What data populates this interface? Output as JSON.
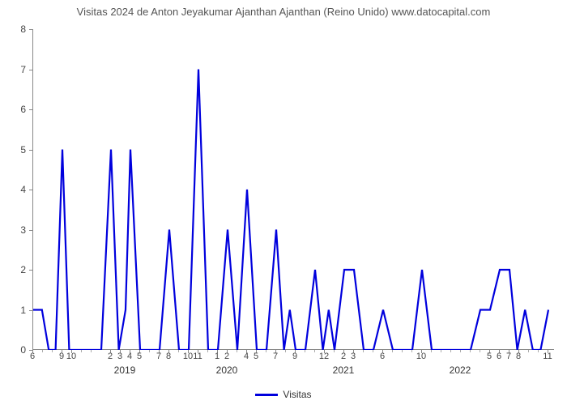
{
  "chart": {
    "type": "line",
    "title": "Visitas 2024 de Anton Jeyakumar Ajanthan Ajanthan (Reino Unido) www.datocapital.com",
    "title_color": "#555555",
    "title_fontsize": 13,
    "background_color": "#ffffff",
    "axis_color": "#888888",
    "tick_label_color": "#444444",
    "tick_fontsize": 12,
    "xtick_fontsize": 11,
    "line_color": "#0000dd",
    "line_width": 2.2,
    "ylim": [
      0,
      8
    ],
    "xlim": [
      0,
      64
    ],
    "ytick_step": 1,
    "x_month_ticks": [
      {
        "pos": 0,
        "label": "6"
      },
      {
        "pos": 1,
        "label": ""
      },
      {
        "pos": 2,
        "label": ""
      },
      {
        "pos": 3,
        "label": "9"
      },
      {
        "pos": 4,
        "label": "10"
      },
      {
        "pos": 5,
        "label": ""
      },
      {
        "pos": 6,
        "label": ""
      },
      {
        "pos": 8,
        "label": "2"
      },
      {
        "pos": 9,
        "label": "3"
      },
      {
        "pos": 10,
        "label": "4"
      },
      {
        "pos": 11,
        "label": "5"
      },
      {
        "pos": 12,
        "label": ""
      },
      {
        "pos": 13,
        "label": "7"
      },
      {
        "pos": 14,
        "label": "8"
      },
      {
        "pos": 15,
        "label": ""
      },
      {
        "pos": 16,
        "label": "10"
      },
      {
        "pos": 17,
        "label": "11"
      },
      {
        "pos": 18,
        "label": ""
      },
      {
        "pos": 19,
        "label": "1"
      },
      {
        "pos": 20,
        "label": "2"
      },
      {
        "pos": 21,
        "label": ""
      },
      {
        "pos": 22,
        "label": "4"
      },
      {
        "pos": 23,
        "label": "5"
      },
      {
        "pos": 24,
        "label": ""
      },
      {
        "pos": 25,
        "label": "7"
      },
      {
        "pos": 26,
        "label": ""
      },
      {
        "pos": 27,
        "label": "9"
      },
      {
        "pos": 28,
        "label": ""
      },
      {
        "pos": 29,
        "label": ""
      },
      {
        "pos": 30,
        "label": "12"
      },
      {
        "pos": 31,
        "label": ""
      },
      {
        "pos": 32,
        "label": "2"
      },
      {
        "pos": 33,
        "label": "3"
      },
      {
        "pos": 34,
        "label": ""
      },
      {
        "pos": 35,
        "label": ""
      },
      {
        "pos": 36,
        "label": "6"
      },
      {
        "pos": 37,
        "label": ""
      },
      {
        "pos": 38,
        "label": ""
      },
      {
        "pos": 39,
        "label": ""
      },
      {
        "pos": 40,
        "label": "10"
      },
      {
        "pos": 41,
        "label": ""
      },
      {
        "pos": 42,
        "label": ""
      },
      {
        "pos": 43,
        "label": ""
      },
      {
        "pos": 44,
        "label": ""
      },
      {
        "pos": 45,
        "label": ""
      },
      {
        "pos": 46,
        "label": ""
      },
      {
        "pos": 47,
        "label": "5"
      },
      {
        "pos": 48,
        "label": "6"
      },
      {
        "pos": 49,
        "label": "7"
      },
      {
        "pos": 50,
        "label": "8"
      },
      {
        "pos": 51,
        "label": ""
      },
      {
        "pos": 52,
        "label": ""
      },
      {
        "pos": 53,
        "label": "11"
      }
    ],
    "year_ticks": [
      {
        "pos": 9.5,
        "label": "2019"
      },
      {
        "pos": 20,
        "label": "2020"
      },
      {
        "pos": 32,
        "label": "2021"
      },
      {
        "pos": 44,
        "label": "2022"
      }
    ],
    "data": [
      {
        "x": 0,
        "y": 1
      },
      {
        "x": 0.9,
        "y": 1
      },
      {
        "x": 1.6,
        "y": 0
      },
      {
        "x": 2.3,
        "y": 0
      },
      {
        "x": 3,
        "y": 5
      },
      {
        "x": 3.7,
        "y": 0
      },
      {
        "x": 6,
        "y": 0
      },
      {
        "x": 7,
        "y": 0
      },
      {
        "x": 8,
        "y": 5
      },
      {
        "x": 8.8,
        "y": 0
      },
      {
        "x": 9.5,
        "y": 1
      },
      {
        "x": 10,
        "y": 5
      },
      {
        "x": 11,
        "y": 0
      },
      {
        "x": 13,
        "y": 0
      },
      {
        "x": 14,
        "y": 3
      },
      {
        "x": 15,
        "y": 0
      },
      {
        "x": 16,
        "y": 0
      },
      {
        "x": 17,
        "y": 7
      },
      {
        "x": 18,
        "y": 0
      },
      {
        "x": 19,
        "y": 0
      },
      {
        "x": 20,
        "y": 3
      },
      {
        "x": 21,
        "y": 0
      },
      {
        "x": 22,
        "y": 4
      },
      {
        "x": 23,
        "y": 0
      },
      {
        "x": 24,
        "y": 0
      },
      {
        "x": 25,
        "y": 3
      },
      {
        "x": 25.8,
        "y": 0
      },
      {
        "x": 26.4,
        "y": 1
      },
      {
        "x": 27,
        "y": 0
      },
      {
        "x": 28,
        "y": 0
      },
      {
        "x": 29,
        "y": 2
      },
      {
        "x": 29.8,
        "y": 0
      },
      {
        "x": 30.4,
        "y": 1
      },
      {
        "x": 31,
        "y": 0
      },
      {
        "x": 32,
        "y": 2
      },
      {
        "x": 33,
        "y": 2
      },
      {
        "x": 34,
        "y": 0
      },
      {
        "x": 35,
        "y": 0
      },
      {
        "x": 36,
        "y": 1
      },
      {
        "x": 37,
        "y": 0
      },
      {
        "x": 39,
        "y": 0
      },
      {
        "x": 40,
        "y": 2
      },
      {
        "x": 41,
        "y": 0
      },
      {
        "x": 44,
        "y": 0
      },
      {
        "x": 45,
        "y": 0
      },
      {
        "x": 46,
        "y": 1
      },
      {
        "x": 47,
        "y": 1
      },
      {
        "x": 48,
        "y": 2
      },
      {
        "x": 49,
        "y": 2
      },
      {
        "x": 49.8,
        "y": 0
      },
      {
        "x": 50.6,
        "y": 1
      },
      {
        "x": 51.4,
        "y": 0
      },
      {
        "x": 52.2,
        "y": 0
      },
      {
        "x": 53,
        "y": 1
      }
    ],
    "legend": {
      "label": "Visitas",
      "color": "#0000dd"
    }
  }
}
